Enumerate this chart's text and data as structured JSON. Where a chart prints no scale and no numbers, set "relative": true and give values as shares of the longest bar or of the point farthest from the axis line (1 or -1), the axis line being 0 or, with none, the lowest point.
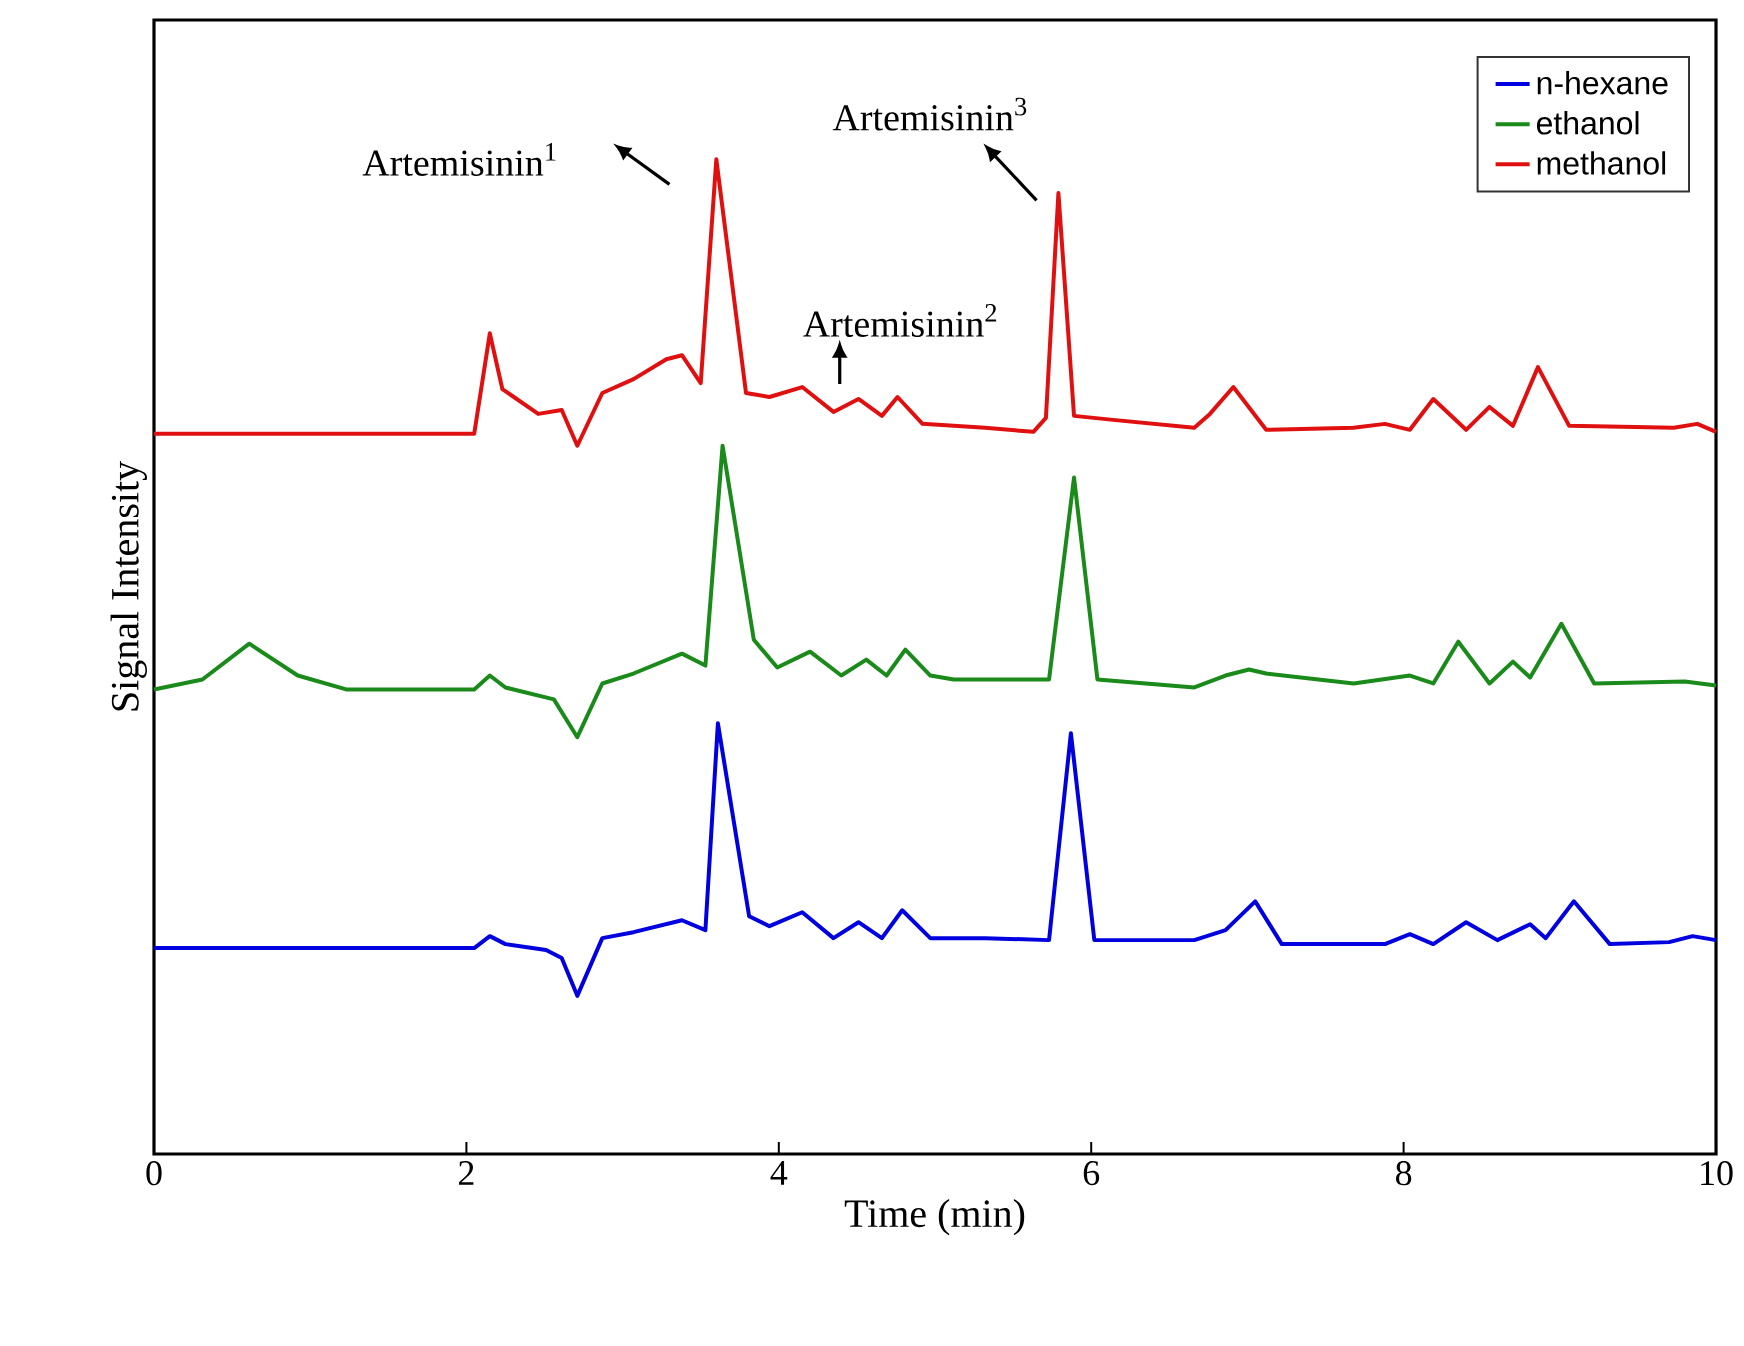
{
  "chart_data": {
    "type": "line",
    "relative": true,
    "xlabel": "Time (min)",
    "ylabel": "Signal Intensity",
    "xlim": [
      0,
      10
    ],
    "xticks": [
      0,
      2,
      4,
      6,
      8,
      10
    ],
    "legend": "top right",
    "marker": "none",
    "line_style": "solid",
    "grid": false,
    "annotations": [
      "Artemisinin$^{1}$",
      "Artemisinin$^{2}$",
      "Artemisinin$^{3}$"
    ],
    "series": [
      {
        "name": "n-hexane",
        "color": "#0000e0",
        "x": [
          0,
          2.05,
          2.15,
          2.25,
          2.51,
          2.61,
          2.71,
          2.87,
          3.07,
          3.38,
          3.53,
          3.61,
          3.81,
          3.94,
          4.15,
          4.35,
          4.51,
          4.66,
          4.79,
          4.97,
          5.32,
          5.73,
          5.87,
          6.02,
          6.66,
          6.86,
          7.05,
          7.22,
          7.88,
          8.04,
          8.19,
          8.4,
          8.6,
          8.81,
          8.91,
          9.09,
          9.32,
          9.7,
          9.85,
          10
        ],
        "values": [
          0.207,
          0.207,
          0.219,
          0.211,
          0.205,
          0.197,
          0.159,
          0.217,
          0.223,
          0.235,
          0.225,
          0.433,
          0.239,
          0.229,
          0.243,
          0.217,
          0.233,
          0.217,
          0.245,
          0.217,
          0.217,
          0.215,
          0.423,
          0.215,
          0.215,
          0.225,
          0.254,
          0.211,
          0.211,
          0.221,
          0.211,
          0.233,
          0.215,
          0.231,
          0.217,
          0.254,
          0.211,
          0.213,
          0.219,
          0.215
        ]
      },
      {
        "name": "ethanol",
        "color": "#1a8a1a",
        "x": [
          0,
          0.31,
          0.61,
          0.92,
          1.23,
          2.05,
          2.15,
          2.25,
          2.56,
          2.71,
          2.87,
          3.07,
          3.38,
          3.53,
          3.64,
          3.84,
          3.99,
          4.2,
          4.4,
          4.56,
          4.69,
          4.81,
          4.97,
          5.12,
          5.73,
          5.89,
          6.04,
          6.66,
          6.86,
          7.01,
          7.12,
          7.68,
          8.04,
          8.19,
          8.35,
          8.55,
          8.7,
          8.81,
          9.01,
          9.22,
          9.8,
          10
        ],
        "values": [
          0.467,
          0.477,
          0.513,
          0.481,
          0.467,
          0.467,
          0.481,
          0.469,
          0.457,
          0.419,
          0.473,
          0.483,
          0.503,
          0.491,
          0.712,
          0.517,
          0.489,
          0.505,
          0.481,
          0.497,
          0.481,
          0.507,
          0.481,
          0.477,
          0.477,
          0.68,
          0.477,
          0.469,
          0.481,
          0.487,
          0.483,
          0.473,
          0.481,
          0.473,
          0.515,
          0.473,
          0.495,
          0.479,
          0.533,
          0.473,
          0.475,
          0.471
        ]
      },
      {
        "name": "methanol",
        "color": "#e01010",
        "x": [
          0,
          2.05,
          2.15,
          2.23,
          2.46,
          2.61,
          2.71,
          2.87,
          3.07,
          3.28,
          3.38,
          3.5,
          3.6,
          3.79,
          3.94,
          4.15,
          4.35,
          4.51,
          4.66,
          4.76,
          4.92,
          5.32,
          5.63,
          5.71,
          5.79,
          5.89,
          6.14,
          6.66,
          6.76,
          6.91,
          7.12,
          7.68,
          7.88,
          8.04,
          8.19,
          8.4,
          8.55,
          8.7,
          8.86,
          9.06,
          9.73,
          9.88,
          10
        ],
        "values": [
          0.724,
          0.724,
          0.825,
          0.769,
          0.744,
          0.748,
          0.712,
          0.765,
          0.779,
          0.799,
          0.803,
          0.775,
          1.0,
          0.765,
          0.761,
          0.771,
          0.746,
          0.759,
          0.742,
          0.761,
          0.734,
          0.73,
          0.726,
          0.74,
          0.966,
          0.742,
          0.738,
          0.73,
          0.744,
          0.771,
          0.728,
          0.73,
          0.734,
          0.728,
          0.759,
          0.728,
          0.751,
          0.732,
          0.791,
          0.732,
          0.73,
          0.734,
          0.726
        ]
      }
    ]
  }
}
